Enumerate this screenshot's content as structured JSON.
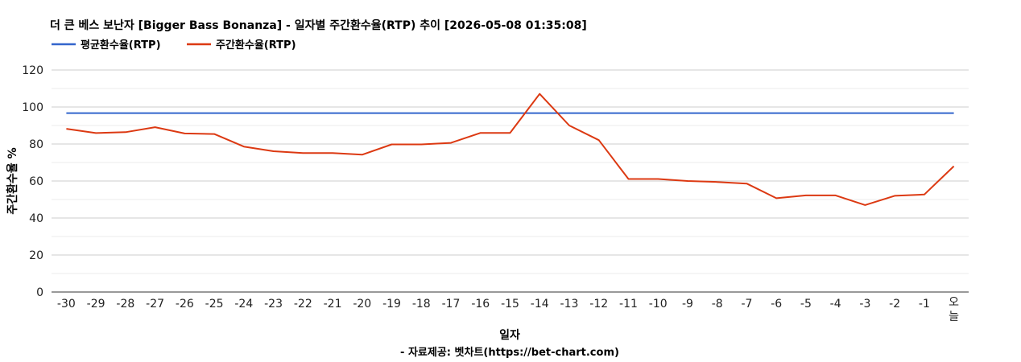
{
  "chart_data": {
    "type": "line",
    "title": "더 큰 베스 보난자 [Bigger Bass Bonanza] - 일자별 주간환수율(RTP) 추이 [2026-05-08 01:35:08]",
    "xlabel": "일자",
    "ylabel": "주간환수율 %",
    "source": "- 자료제공: 벳차트(https://bet-chart.com)",
    "ylim": [
      0,
      120
    ],
    "yticks": [
      0,
      20,
      40,
      60,
      80,
      100,
      120
    ],
    "grid": true,
    "legend_position": "top-left",
    "categories": [
      "-30",
      "-29",
      "-28",
      "-27",
      "-26",
      "-25",
      "-24",
      "-23",
      "-22",
      "-21",
      "-20",
      "-19",
      "-18",
      "-17",
      "-16",
      "-15",
      "-14",
      "-13",
      "-12",
      "-11",
      "-10",
      "-9",
      "-8",
      "-7",
      "-6",
      "-5",
      "-4",
      "-3",
      "-2",
      "-1",
      "오늘"
    ],
    "series": [
      {
        "name": "평균환수율(RTP)",
        "color": "#3366cc",
        "values": [
          96.7,
          96.7,
          96.7,
          96.7,
          96.7,
          96.7,
          96.7,
          96.7,
          96.7,
          96.7,
          96.7,
          96.7,
          96.7,
          96.7,
          96.7,
          96.7,
          96.7,
          96.7,
          96.7,
          96.7,
          96.7,
          96.7,
          96.7,
          96.7,
          96.7,
          96.7,
          96.7,
          96.7,
          96.7,
          96.7,
          96.7
        ]
      },
      {
        "name": "주간환수율(RTP)",
        "color": "#dc3912",
        "values": [
          88.2,
          85.9,
          86.4,
          89.1,
          85.7,
          85.4,
          78.6,
          76.1,
          75.1,
          75.1,
          74.2,
          79.8,
          79.8,
          80.6,
          86.0,
          86.0,
          107.1,
          90.0,
          82.1,
          61.1,
          61.1,
          60.0,
          59.5,
          58.6,
          50.7,
          52.2,
          52.2,
          47.0,
          52.0,
          52.7,
          68.0
        ]
      }
    ]
  }
}
